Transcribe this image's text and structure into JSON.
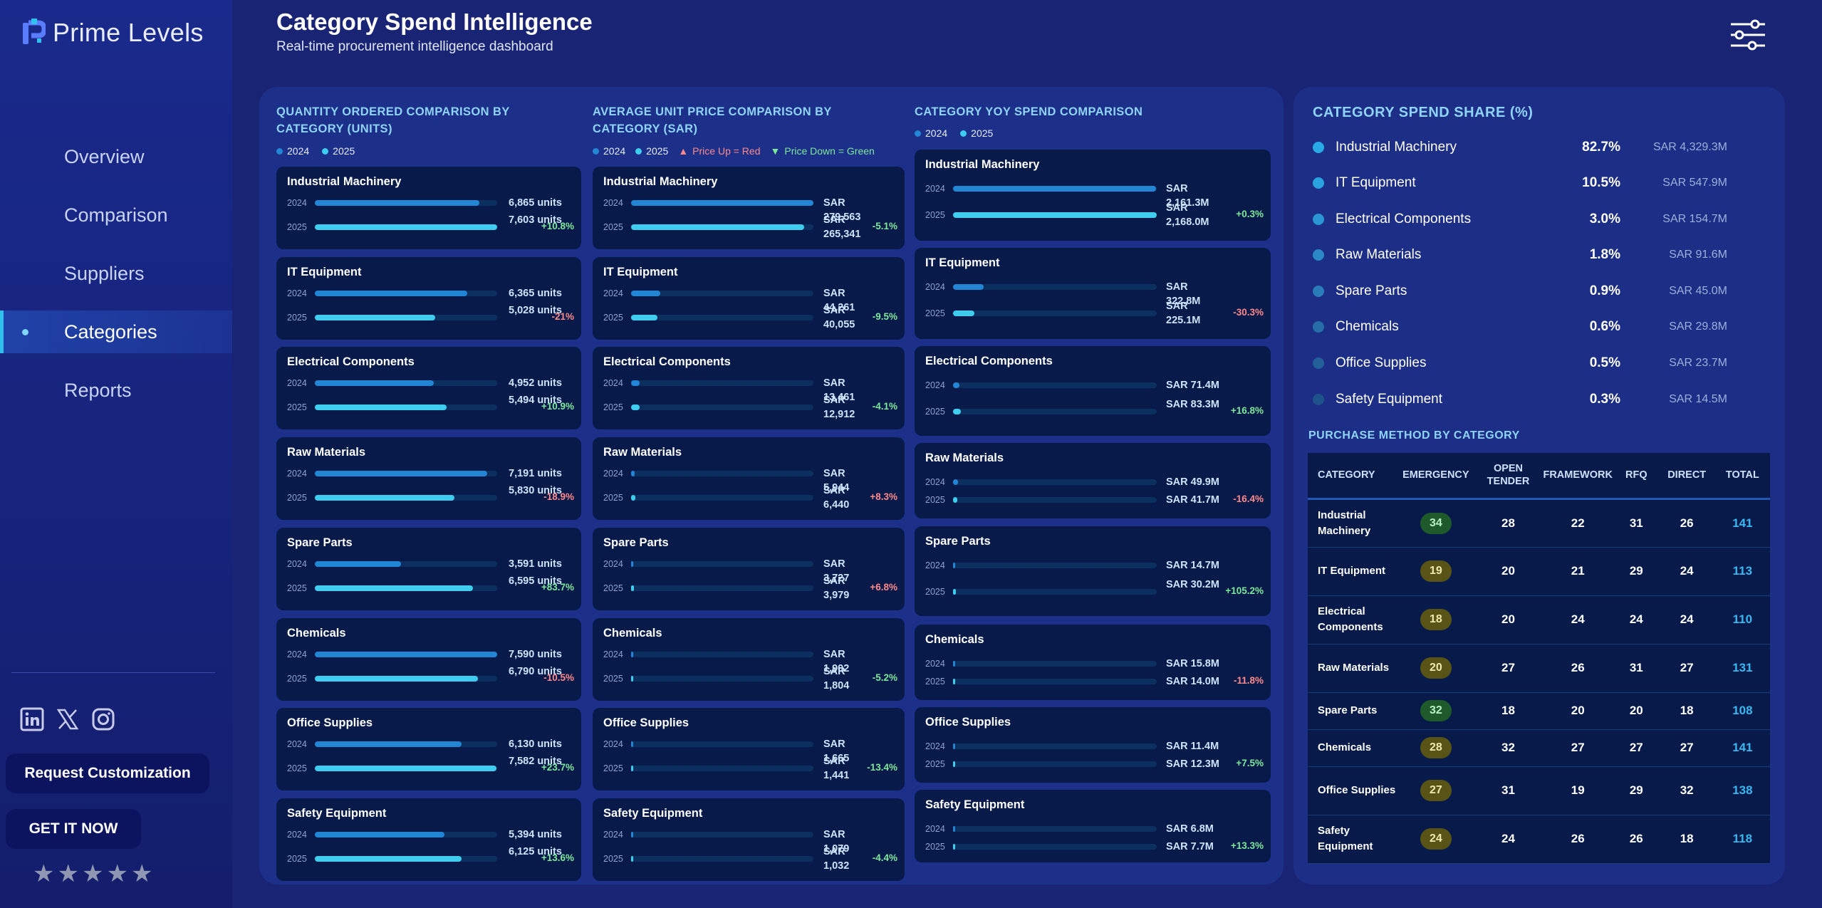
{
  "app": {
    "logo_text": "Prime Levels",
    "title": "Category Spend Intelligence",
    "subtitle": "Real-time procurement intelligence dashboard"
  },
  "nav": {
    "items": [
      "Overview",
      "Comparison",
      "Suppliers",
      "Categories",
      "Reports"
    ],
    "active": "Categories"
  },
  "sidebar": {
    "request_button": "Request Customization",
    "get_button": "GET IT NOW",
    "rating": 5,
    "icons": [
      "linkedin-icon",
      "x-icon",
      "instagram-icon"
    ]
  },
  "colors": {
    "accent": "#2fc0ee",
    "bar_2024": "#2386d4",
    "bar_2025": "#3ecdee",
    "positive": "#7ee89a",
    "negative": "#ff8a8a"
  },
  "legend": {
    "y2024": "2024",
    "y2025": "2025",
    "price_up": "Price Up = Red",
    "price_down": "Price Down = Green"
  },
  "quantity_chart": {
    "title": "QUANTITY ORDERED COMPARISON BY CATEGORY (UNITS)",
    "rows": [
      {
        "name": "Industrial Machinery",
        "v2024": 6865,
        "v2025": 7603,
        "l2024": "6,865 units",
        "l2025": "7,603 units",
        "change": "+10.8%"
      },
      {
        "name": "IT Equipment",
        "v2024": 6365,
        "v2025": 5028,
        "l2024": "6,365 units",
        "l2025": "5,028 units",
        "change": "-21%"
      },
      {
        "name": "Electrical Components",
        "v2024": 4952,
        "v2025": 5494,
        "l2024": "4,952 units",
        "l2025": "5,494 units",
        "change": "+10.9%"
      },
      {
        "name": "Raw Materials",
        "v2024": 7191,
        "v2025": 5830,
        "l2024": "7,191 units",
        "l2025": "5,830 units",
        "change": "-18.9%"
      },
      {
        "name": "Spare Parts",
        "v2024": 3591,
        "v2025": 6595,
        "l2024": "3,591 units",
        "l2025": "6,595 units",
        "change": "+83.7%"
      },
      {
        "name": "Chemicals",
        "v2024": 7590,
        "v2025": 6790,
        "l2024": "7,590 units",
        "l2025": "6,790 units",
        "change": "-10.5%"
      },
      {
        "name": "Office Supplies",
        "v2024": 6130,
        "v2025": 7582,
        "l2024": "6,130 units",
        "l2025": "7,582 units",
        "change": "+23.7%"
      },
      {
        "name": "Safety Equipment",
        "v2024": 5394,
        "v2025": 6125,
        "l2024": "5,394 units",
        "l2025": "6,125 units",
        "change": "+13.6%"
      }
    ]
  },
  "price_chart": {
    "title": "AVERAGE UNIT PRICE COMPARISON BY CATEGORY (SAR)",
    "rows": [
      {
        "name": "Industrial Machinery",
        "v2024": 279563,
        "v2025": 265341,
        "l2024": "SAR 279,563",
        "l2025": "SAR 265,341",
        "change": "-5.1%"
      },
      {
        "name": "IT Equipment",
        "v2024": 44261,
        "v2025": 40055,
        "l2024": "SAR 44,261",
        "l2025": "SAR 40,055",
        "change": "-9.5%"
      },
      {
        "name": "Electrical Components",
        "v2024": 13461,
        "v2025": 12912,
        "l2024": "SAR 13,461",
        "l2025": "SAR 12,912",
        "change": "-4.1%"
      },
      {
        "name": "Raw Materials",
        "v2024": 5944,
        "v2025": 6440,
        "l2024": "SAR 5,944",
        "l2025": "SAR 6,440",
        "change": "+8.3%"
      },
      {
        "name": "Spare Parts",
        "v2024": 3727,
        "v2025": 3979,
        "l2024": "SAR 3,727",
        "l2025": "SAR 3,979",
        "change": "+6.8%"
      },
      {
        "name": "Chemicals",
        "v2024": 1902,
        "v2025": 1804,
        "l2024": "SAR 1,902",
        "l2025": "SAR 1,804",
        "change": "-5.2%"
      },
      {
        "name": "Office Supplies",
        "v2024": 1665,
        "v2025": 1441,
        "l2024": "SAR 1,665",
        "l2025": "SAR 1,441",
        "change": "-13.4%"
      },
      {
        "name": "Safety Equipment",
        "v2024": 1079,
        "v2025": 1032,
        "l2024": "SAR 1,079",
        "l2025": "SAR 1,032",
        "change": "-4.4%"
      }
    ]
  },
  "yoy_chart": {
    "title": "CATEGORY YOY SPEND COMPARISON",
    "rows": [
      {
        "name": "Industrial Machinery",
        "v2024": 2161.3,
        "v2025": 2168.0,
        "l2024": "SAR 2,161.3M",
        "l2025": "SAR 2,168.0M",
        "change": "+0.3%"
      },
      {
        "name": "IT Equipment",
        "v2024": 322.8,
        "v2025": 225.1,
        "l2024": "SAR 322.8M",
        "l2025": "SAR 225.1M",
        "change": "-30.3%"
      },
      {
        "name": "Electrical Components",
        "v2024": 71.4,
        "v2025": 83.3,
        "l2024": "SAR 71.4M",
        "l2025": "SAR 83.3M",
        "change": "+16.8%"
      },
      {
        "name": "Raw Materials",
        "v2024": 49.9,
        "v2025": 41.7,
        "l2024": "SAR 49.9M",
        "l2025": "SAR 41.7M",
        "change": "-16.4%"
      },
      {
        "name": "Spare Parts",
        "v2024": 14.7,
        "v2025": 30.2,
        "l2024": "SAR 14.7M",
        "l2025": "SAR 30.2M",
        "change": "+105.2%"
      },
      {
        "name": "Chemicals",
        "v2024": 15.8,
        "v2025": 14.0,
        "l2024": "SAR 15.8M",
        "l2025": "SAR 14.0M",
        "change": "-11.8%"
      },
      {
        "name": "Office Supplies",
        "v2024": 11.4,
        "v2025": 12.3,
        "l2024": "SAR 11.4M",
        "l2025": "SAR 12.3M",
        "change": "+7.5%"
      },
      {
        "name": "Safety Equipment",
        "v2024": 6.8,
        "v2025": 7.7,
        "l2024": "SAR 6.8M",
        "l2025": "SAR 7.7M",
        "change": "+13.3%"
      }
    ]
  },
  "spend_share": {
    "title": "CATEGORY SPEND SHARE (%)",
    "rows": [
      {
        "name": "Industrial Machinery",
        "pct": "82.7%",
        "amount": "SAR 4,329.3M",
        "color": "#29a9e6"
      },
      {
        "name": "IT Equipment",
        "pct": "10.5%",
        "amount": "SAR 547.9M",
        "color": "#2aa2df"
      },
      {
        "name": "Electrical Components",
        "pct": "3.0%",
        "amount": "SAR 154.7M",
        "color": "#2a97d4"
      },
      {
        "name": "Raw Materials",
        "pct": "1.8%",
        "amount": "SAR 91.6M",
        "color": "#2a89c6"
      },
      {
        "name": "Spare Parts",
        "pct": "0.9%",
        "amount": "SAR 45.0M",
        "color": "#2a7cb8"
      },
      {
        "name": "Chemicals",
        "pct": "0.6%",
        "amount": "SAR 29.8M",
        "color": "#276ea8"
      },
      {
        "name": "Office Supplies",
        "pct": "0.5%",
        "amount": "SAR 23.7M",
        "color": "#23609a"
      },
      {
        "name": "Safety Equipment",
        "pct": "0.3%",
        "amount": "SAR 14.5M",
        "color": "#1e528a"
      }
    ]
  },
  "purchase_method": {
    "title": "PURCHASE METHOD BY CATEGORY",
    "columns": [
      "CATEGORY",
      "EMERGENCY",
      "OPEN TENDER",
      "FRAMEWORK",
      "RFQ",
      "DIRECT",
      "TOTAL"
    ],
    "rows": [
      {
        "category": "Industrial Machinery",
        "emergency": 34,
        "open_tender": 28,
        "framework": 22,
        "rfq": 31,
        "direct": 26,
        "total": 141
      },
      {
        "category": "IT Equipment",
        "emergency": 19,
        "open_tender": 20,
        "framework": 21,
        "rfq": 29,
        "direct": 24,
        "total": 113
      },
      {
        "category": "Electrical Components",
        "emergency": 18,
        "open_tender": 20,
        "framework": 24,
        "rfq": 24,
        "direct": 24,
        "total": 110
      },
      {
        "category": "Raw Materials",
        "emergency": 20,
        "open_tender": 27,
        "framework": 26,
        "rfq": 31,
        "direct": 27,
        "total": 131
      },
      {
        "category": "Spare Parts",
        "emergency": 32,
        "open_tender": 18,
        "framework": 20,
        "rfq": 20,
        "direct": 18,
        "total": 108
      },
      {
        "category": "Chemicals",
        "emergency": 28,
        "open_tender": 32,
        "framework": 27,
        "rfq": 27,
        "direct": 27,
        "total": 141
      },
      {
        "category": "Office Supplies",
        "emergency": 27,
        "open_tender": 31,
        "framework": 19,
        "rfq": 29,
        "direct": 32,
        "total": 138
      },
      {
        "category": "Safety Equipment",
        "emergency": 24,
        "open_tender": 24,
        "framework": 26,
        "rfq": 26,
        "direct": 18,
        "total": 118
      }
    ]
  }
}
